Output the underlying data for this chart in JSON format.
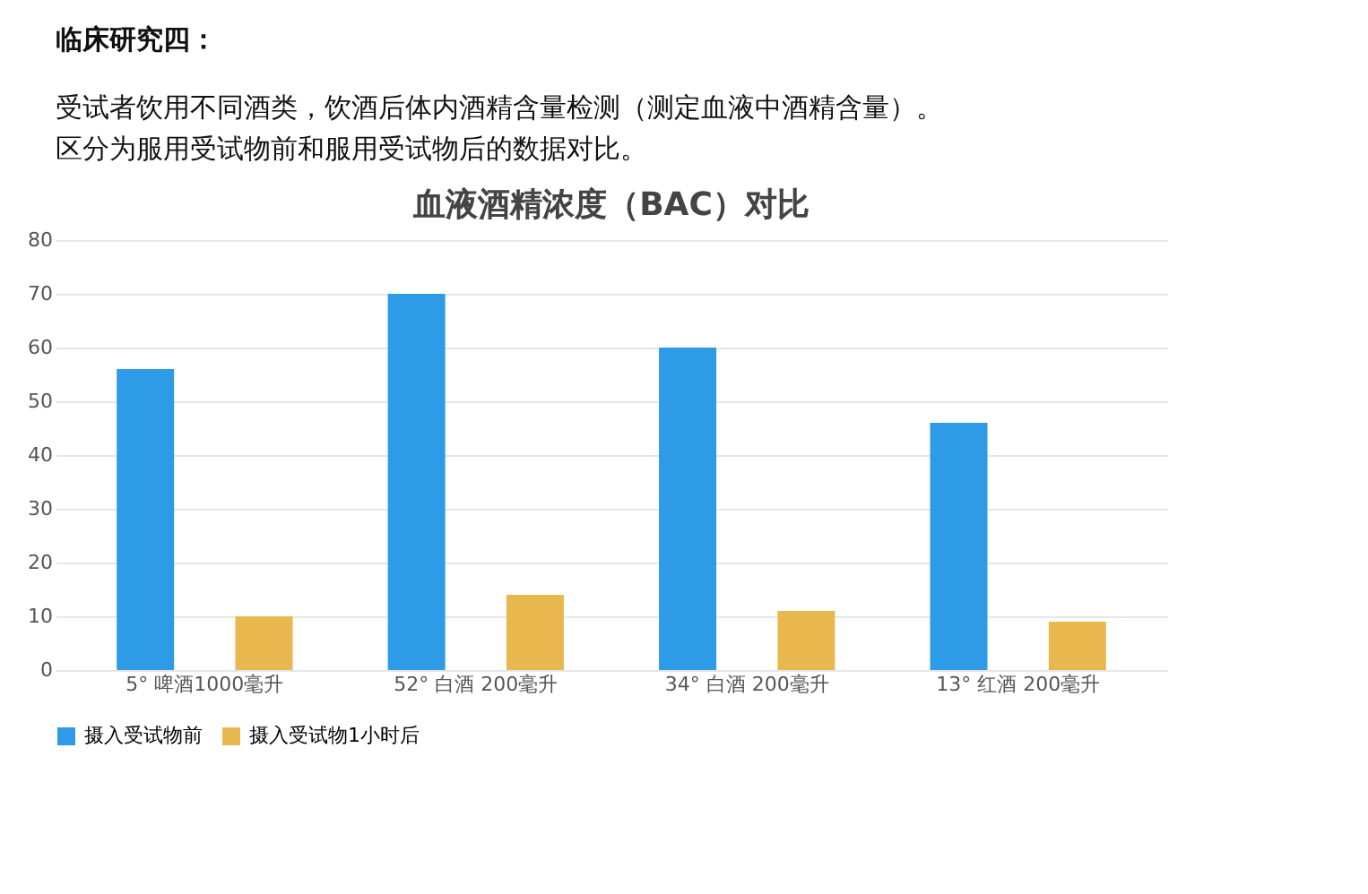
{
  "chart_data": {
    "type": "bar",
    "title": "血液酒精浓度（BAC）对比",
    "annotations": [
      "临床研究四：",
      "受试者饮用不同酒类，饮酒后体内酒精含量检测（测定血液中酒精含量）。",
      "区分为服用受试物前和服用受试物后的数据对比。"
    ],
    "categories": [
      "5°  啤酒1000毫升",
      "52°  白酒 200毫升",
      "34°  白酒 200毫升",
      "13°  红酒 200毫升"
    ],
    "series": [
      {
        "name": "摄入受试物前",
        "color": "#2e9be6",
        "values": [
          56,
          70,
          60,
          46
        ]
      },
      {
        "name": "摄入受试物1小时后",
        "color": "#e8b84f",
        "values": [
          10,
          14,
          11,
          9
        ]
      }
    ],
    "ylim": [
      0,
      80
    ],
    "yticks": [
      0,
      10,
      20,
      30,
      40,
      50,
      60,
      70,
      80
    ],
    "grid": "y",
    "legend": "bottom"
  }
}
